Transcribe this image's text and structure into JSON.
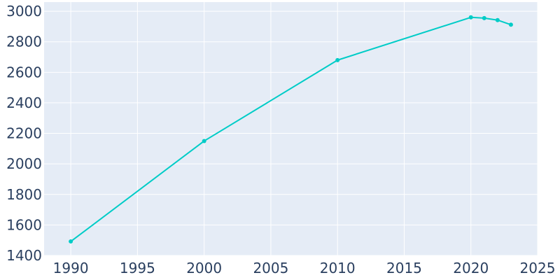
{
  "chart_data": {
    "type": "line",
    "title": "",
    "xlabel": "",
    "ylabel": "",
    "xlim": [
      1988,
      2025
    ],
    "ylim": [
      1400,
      3060
    ],
    "x_ticks": [
      "1990",
      "1995",
      "2000",
      "2005",
      "2010",
      "2015",
      "2020",
      "2025"
    ],
    "y_ticks": [
      "1400",
      "1600",
      "1800",
      "2000",
      "2200",
      "2400",
      "2600",
      "2800",
      "3000"
    ],
    "grid": true,
    "legend": "none",
    "series": [
      {
        "x": [
          1990,
          2000,
          2010,
          2020,
          2021,
          2022,
          2023
        ],
        "y": [
          1492,
          2150,
          2680,
          2960,
          2955,
          2942,
          2912
        ]
      }
    ],
    "colors": {
      "line": "#00ccc7",
      "plot_background": "#e5ecf6",
      "grid": "#ffffff",
      "text": "#2a3f5f"
    }
  }
}
